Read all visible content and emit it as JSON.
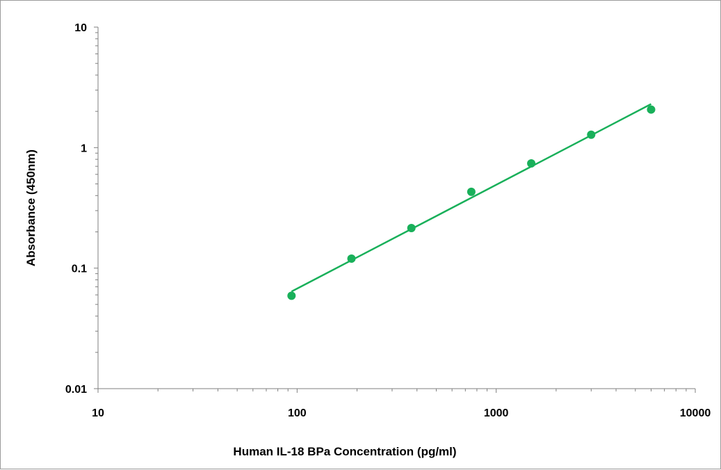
{
  "chart_data": {
    "type": "scatter",
    "xlabel": "Human IL-18 BPa Concentration (pg/ml)",
    "ylabel": "Absorbance (450nm)",
    "x_scale": "log",
    "y_scale": "log",
    "xlim": [
      10,
      10000
    ],
    "ylim": [
      0.01,
      10
    ],
    "x_ticks": [
      {
        "value": 10,
        "label": "10"
      },
      {
        "value": 100,
        "label": "100"
      },
      {
        "value": 1000,
        "label": "1000"
      },
      {
        "value": 10000,
        "label": "10000"
      }
    ],
    "y_ticks": [
      {
        "value": 0.01,
        "label": "0.01"
      },
      {
        "value": 0.1,
        "label": "0.1"
      },
      {
        "value": 1,
        "label": "1"
      },
      {
        "value": 10,
        "label": "10"
      }
    ],
    "grid": false,
    "series": [
      {
        "color": "#19b05a",
        "points": [
          {
            "x": 93.75,
            "y": 0.059
          },
          {
            "x": 187.5,
            "y": 0.12
          },
          {
            "x": 375,
            "y": 0.215
          },
          {
            "x": 750,
            "y": 0.43
          },
          {
            "x": 1500,
            "y": 0.74
          },
          {
            "x": 3000,
            "y": 1.28
          },
          {
            "x": 6000,
            "y": 2.07
          }
        ],
        "fit_line": {
          "x": [
            93.75,
            6000
          ],
          "y": [
            0.064,
            2.3
          ]
        }
      }
    ]
  }
}
